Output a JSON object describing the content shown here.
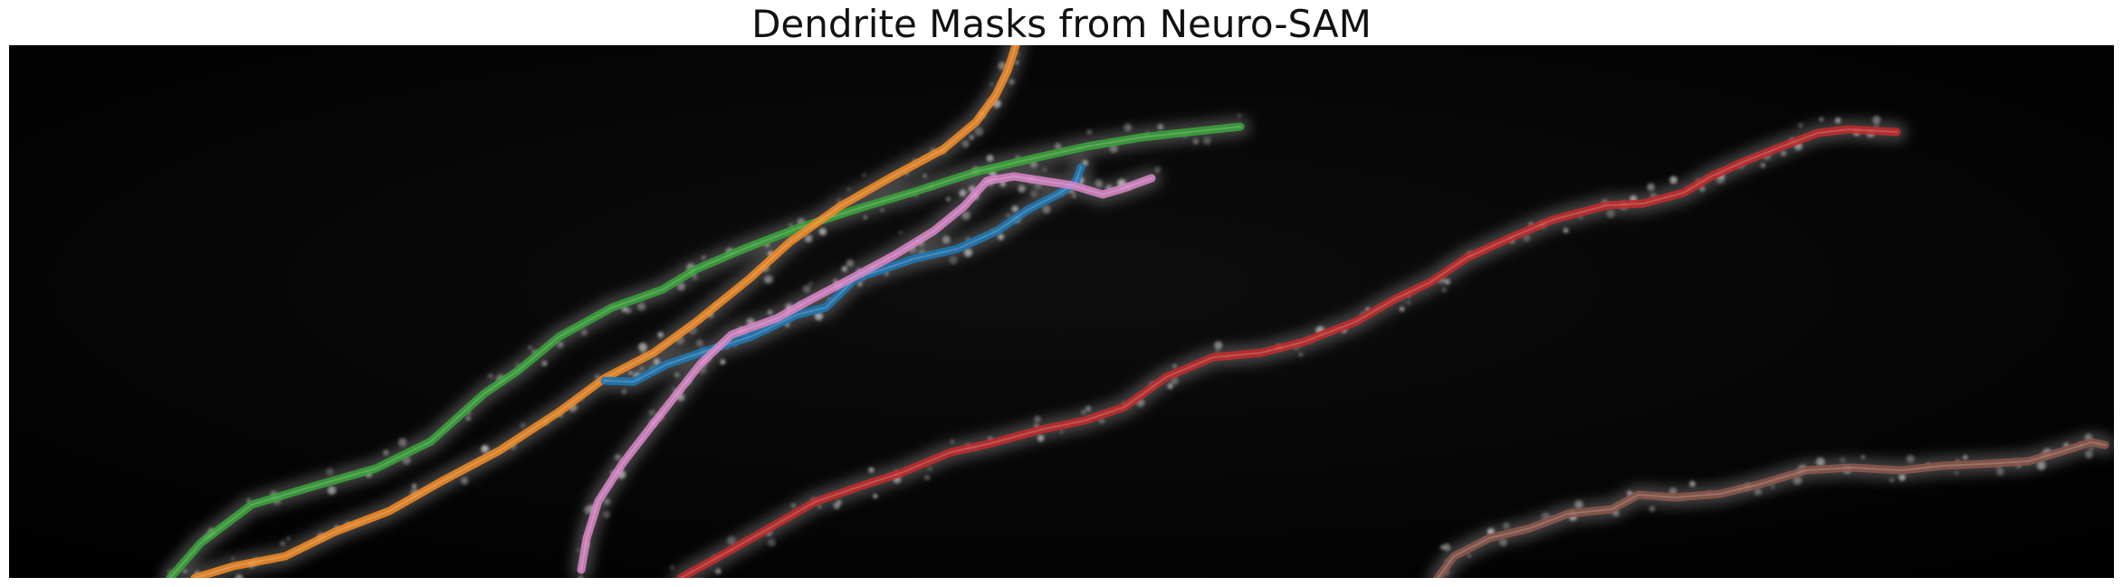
{
  "figure": {
    "title": "Dendrite Masks from Neuro-SAM"
  },
  "image": {
    "subject": "fluorescence-dendrites",
    "background_color": "#050505",
    "spine_color": "#cfcfcf",
    "masks": [
      {
        "id": "green",
        "color": "#3aa33a"
      },
      {
        "id": "orange",
        "color": "#f08a24"
      },
      {
        "id": "blue",
        "color": "#1f77b4"
      },
      {
        "id": "pink",
        "color": "#d784c6"
      },
      {
        "id": "red",
        "color": "#c22b2b"
      },
      {
        "id": "brown",
        "color": "#8c564b"
      }
    ]
  }
}
